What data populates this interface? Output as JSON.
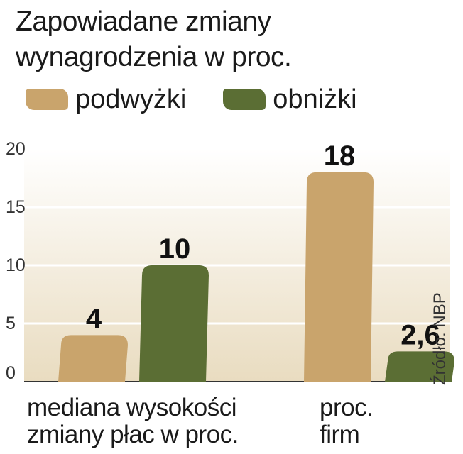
{
  "chart_data": {
    "type": "bar",
    "title": "Zapowiadane zmiany wynagrodzenia w proc.",
    "categories": [
      "mediana wysokości zmiany płac w proc.",
      "proc. firm"
    ],
    "category_lines": [
      [
        "mediana wysokości",
        "zmiany płac w proc."
      ],
      [
        "proc.",
        "firm"
      ]
    ],
    "series": [
      {
        "name": "podwyżki",
        "values": [
          4,
          18
        ],
        "labels": [
          "4",
          "18"
        ],
        "color": "#c9a46c"
      },
      {
        "name": "obniżki",
        "values": [
          10,
          2.6
        ],
        "labels": [
          "10",
          "2,6"
        ],
        "color": "#5b6e34"
      }
    ],
    "yticks": [
      0,
      5,
      10,
      15,
      20
    ],
    "ylim": [
      0,
      20
    ],
    "grid": true,
    "legend_position": "top",
    "source": "Źródło: NBP"
  }
}
